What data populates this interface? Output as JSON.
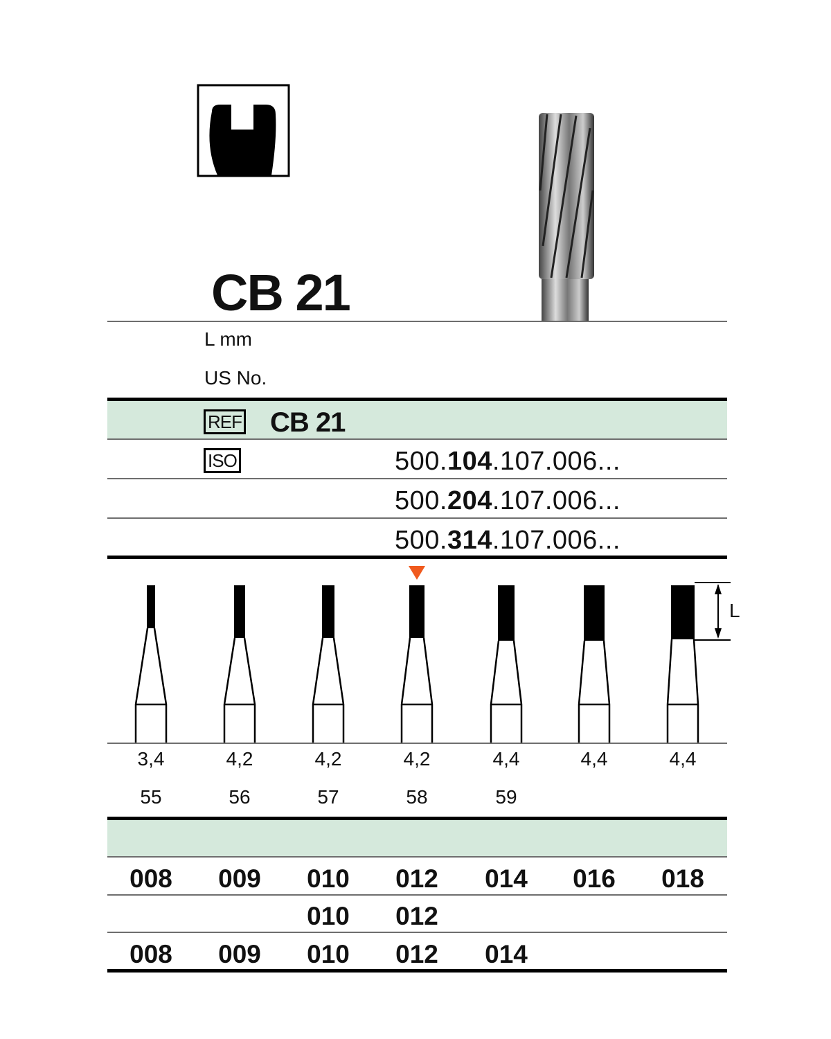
{
  "product": {
    "title": "CB 21",
    "shape_icon": "crosscut-cylinder-shape-icon",
    "image": "crosscut-fissure-bur-photo"
  },
  "labels": {
    "length": "L mm",
    "us_no": "US No.",
    "ref_badge": "REF",
    "ref_value": "CB 21",
    "iso_badge": "ISO",
    "dimension_label": "L"
  },
  "iso_codes": [
    {
      "prefix": "500.",
      "bold": "104",
      "suffix": ".107.006..."
    },
    {
      "prefix": "500.",
      "bold": "204",
      "suffix": ".107.006..."
    },
    {
      "prefix": "500.",
      "bold": "314",
      "suffix": ".107.006..."
    }
  ],
  "selected_marker": {
    "column": 3,
    "color": "#f05a1e",
    "icon": "triangle-down-marker-icon"
  },
  "colors": {
    "accent_band": "#d5e9dc"
  },
  "columns": [
    {
      "length": "3,4",
      "us_no": "55"
    },
    {
      "length": "4,2",
      "us_no": "56"
    },
    {
      "length": "4,2",
      "us_no": "57"
    },
    {
      "length": "4,2",
      "us_no": "58"
    },
    {
      "length": "4,4",
      "us_no": "59"
    },
    {
      "length": "4,4",
      "us_no": ""
    },
    {
      "length": "4,4",
      "us_no": ""
    }
  ],
  "size_rows": [
    [
      "008",
      "009",
      "010",
      "012",
      "014",
      "016",
      "018"
    ],
    [
      "",
      "",
      "010",
      "012",
      "",
      "",
      ""
    ],
    [
      "008",
      "009",
      "010",
      "012",
      "014",
      "",
      ""
    ]
  ]
}
